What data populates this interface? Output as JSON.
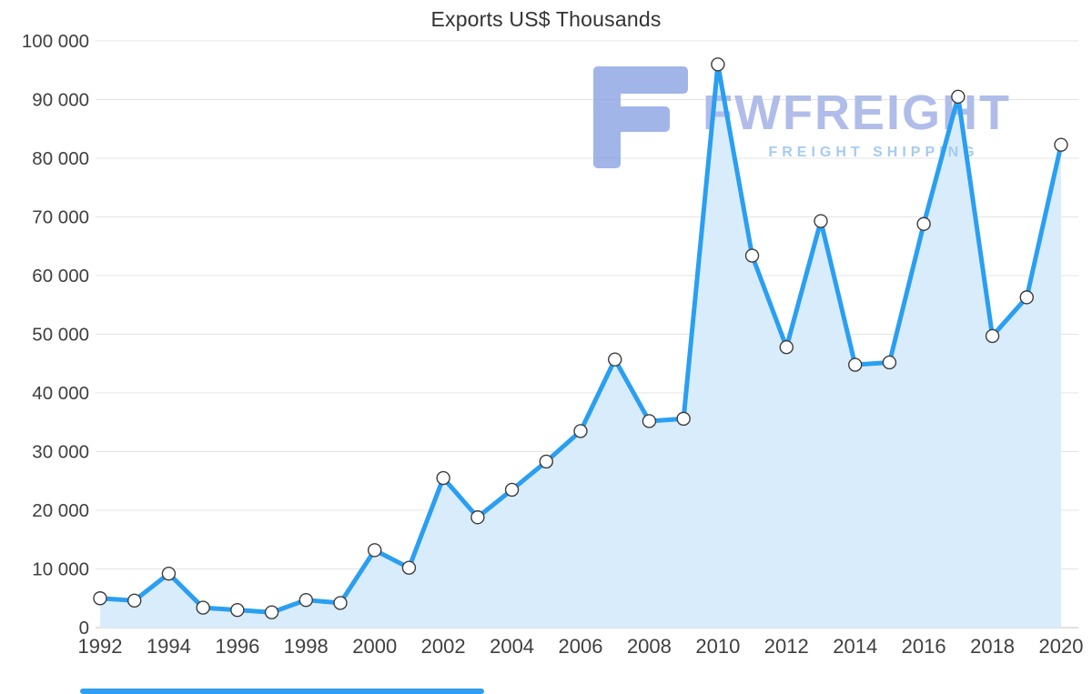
{
  "title": "Exports US$ Thousands",
  "watermark": {
    "brand": "FWFREIGHT",
    "tagline": "FREIGHT SHIPPING",
    "brand_color": "#b0bde9",
    "tagline_color": "#a6cbf3",
    "logo_color": "#8aa3e4"
  },
  "scrollbar": {
    "color": "#2f9ef3"
  },
  "chart_data": {
    "type": "area",
    "title": "Exports US$ Thousands",
    "xlabel": "",
    "ylabel": "Exports US$ Thousands",
    "x": [
      1992,
      1993,
      1994,
      1995,
      1996,
      1997,
      1998,
      1999,
      2000,
      2001,
      2002,
      2003,
      2004,
      2005,
      2006,
      2007,
      2008,
      2009,
      2010,
      2011,
      2012,
      2013,
      2014,
      2015,
      2016,
      2017,
      2018,
      2019,
      2020
    ],
    "series": [
      {
        "name": "Exports",
        "values": [
          5000,
          4600,
          9200,
          3400,
          3000,
          2600,
          4700,
          4200,
          13200,
          10200,
          25500,
          18800,
          23500,
          28300,
          33500,
          45700,
          35200,
          35600,
          96000,
          63400,
          47800,
          69300,
          44800,
          45200,
          68800,
          90500,
          49700,
          56300,
          82300
        ]
      }
    ],
    "ylim": [
      0,
      100000
    ],
    "y_tick_step": 10000,
    "x_tick_step": 2,
    "grid": "horizontal",
    "legend": "none",
    "markers": "circle",
    "colors": {
      "line": "#2a9ff2",
      "area": "#d9ecfb",
      "marker_fill": "#ffffff",
      "marker_stroke": "#3c3c3c",
      "gridline": "#e4e4e4",
      "axis_line": "#c6c6c6",
      "axis_text": "#3f3f3f"
    }
  }
}
